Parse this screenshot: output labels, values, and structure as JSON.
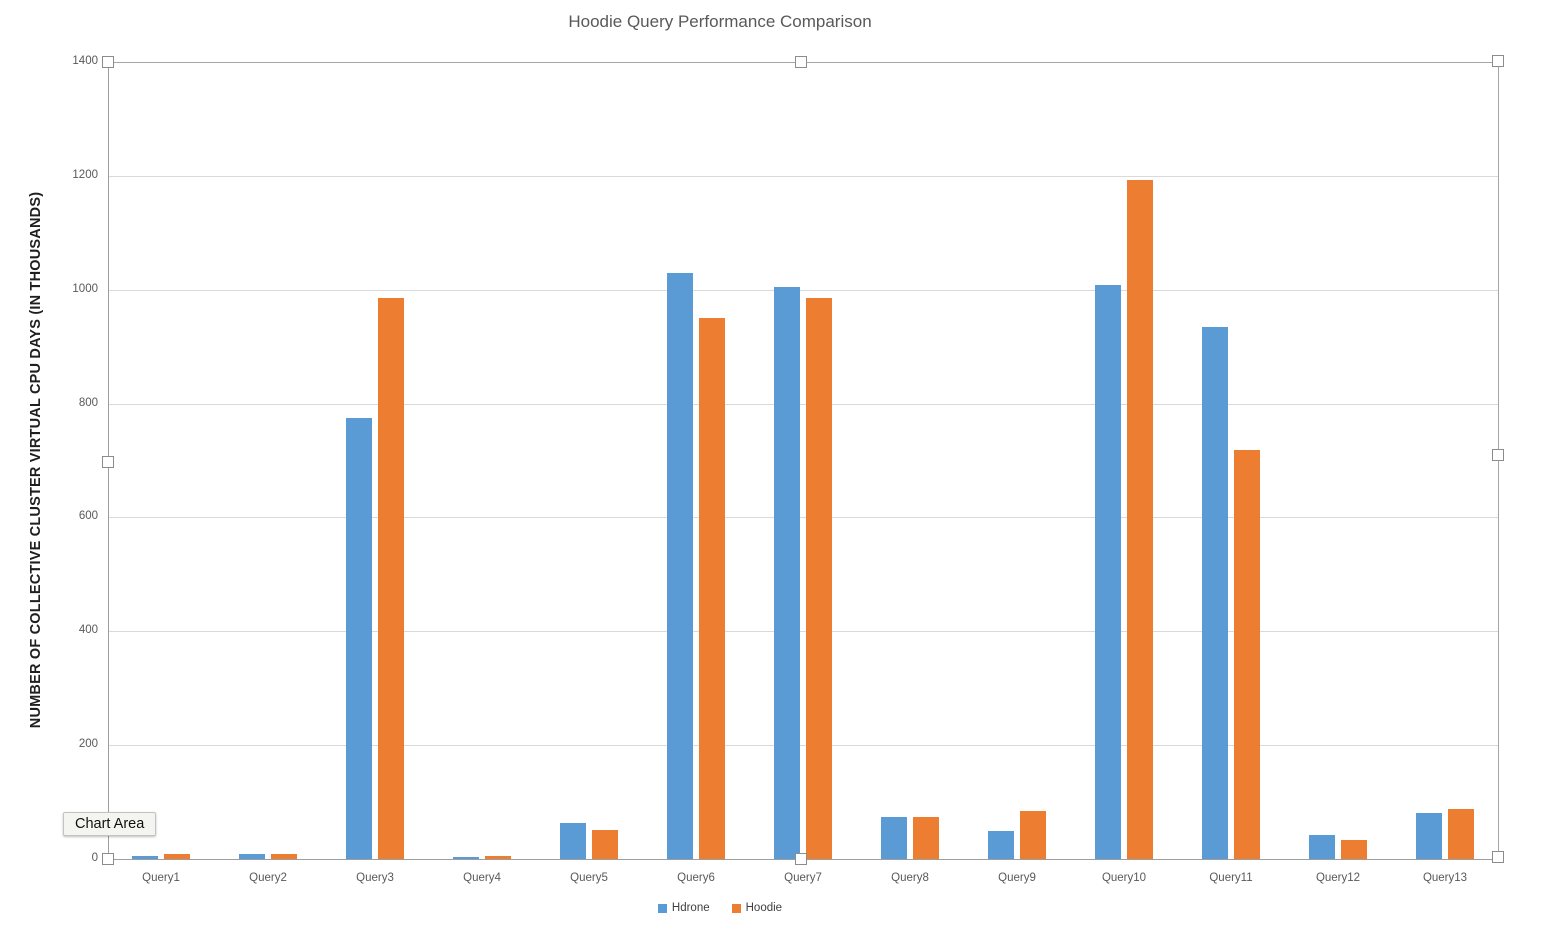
{
  "chart_data": {
    "type": "bar",
    "title": "Hoodie Query Performance Comparison",
    "xlabel": "",
    "ylabel": "NUMBER OF COLLECTIVE CLUSTER VIRTUAL CPU DAYS (IN THOUSANDS)",
    "categories": [
      "Query1",
      "Query2",
      "Query3",
      "Query4",
      "Query5",
      "Query6",
      "Query7",
      "Query8",
      "Query9",
      "Query10",
      "Query11",
      "Query12",
      "Query13"
    ],
    "series": [
      {
        "name": "Hdrone",
        "color": "#5B9BD5",
        "values": [
          5,
          8,
          775,
          4,
          63,
          1030,
          1005,
          74,
          50,
          1008,
          935,
          42,
          80
        ]
      },
      {
        "name": "Hoodie",
        "color": "#ED7D31",
        "values": [
          8,
          8,
          985,
          5,
          51,
          950,
          985,
          74,
          85,
          1193,
          718,
          33,
          88
        ]
      }
    ],
    "ylim": [
      0,
      1400
    ],
    "yticks": [
      0,
      200,
      400,
      600,
      800,
      1000,
      1200,
      1400
    ],
    "grid": true,
    "legend_position": "bottom"
  },
  "tooltip": {
    "label": "Chart Area"
  },
  "colors": {
    "series_hdrone": "#5B9BD5",
    "series_hoodie": "#ED7D31",
    "gridline": "#D9D9D9",
    "axis_line": "#9E9E9E",
    "selection_border": "#A6A6A6",
    "title_text": "#595959",
    "tick_text": "#595959"
  }
}
